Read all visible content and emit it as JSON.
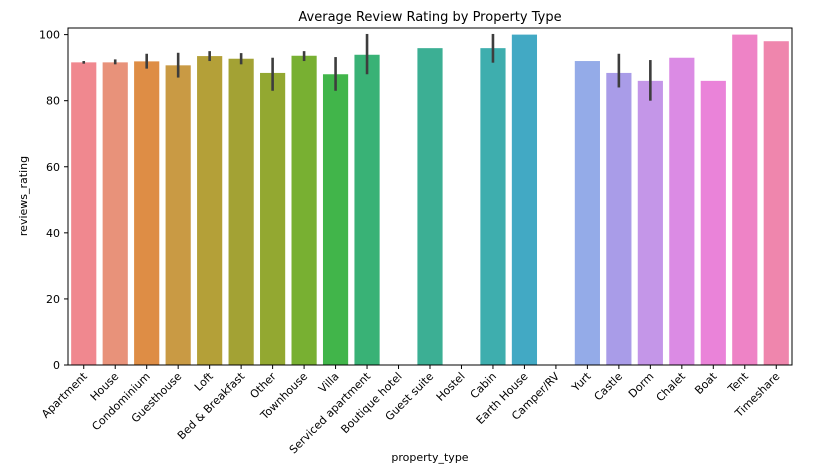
{
  "chart_data": {
    "type": "bar",
    "title": "Average Review Rating by Property Type",
    "xlabel": "property_type",
    "ylabel": "reviews_rating",
    "ylim": [
      0,
      102
    ],
    "yticks": [
      0,
      20,
      40,
      60,
      80,
      100
    ],
    "grid": false,
    "legend": "none",
    "categories": [
      "Apartment",
      "House",
      "Condominium",
      "Guesthouse",
      "Loft",
      "Bed & Breakfast",
      "Other",
      "Townhouse",
      "Villa",
      "Serviced apartment",
      "Boutique hotel",
      "Guest suite",
      "Hostel",
      "Cabin",
      "Earth House",
      "Camper/RV",
      "Yurt",
      "Castle",
      "Dorm",
      "Chalet",
      "Boat",
      "Tent",
      "Timeshare"
    ],
    "values": [
      91.6,
      91.6,
      91.9,
      90.7,
      93.5,
      92.7,
      88.4,
      93.6,
      88.0,
      93.9,
      null,
      95.9,
      null,
      95.9,
      100,
      null,
      92.0,
      88.4,
      86.0,
      93.0,
      86.0,
      100,
      98.0
    ],
    "error_low": [
      91.2,
      91.0,
      89.7,
      87.0,
      92.0,
      91.0,
      83.0,
      92.0,
      83.0,
      88.0,
      null,
      null,
      null,
      91.5,
      null,
      null,
      null,
      84.0,
      80.0,
      null,
      null,
      null,
      null
    ],
    "error_high": [
      92.0,
      92.5,
      94.2,
      94.5,
      95.0,
      94.4,
      93.0,
      95.0,
      93.2,
      100.2,
      null,
      null,
      null,
      100.2,
      null,
      null,
      null,
      94.2,
      92.3,
      null,
      null,
      null,
      null
    ],
    "colors": [
      "#f0888f",
      "#e8927a",
      "#de8d45",
      "#c99a44",
      "#b4a038",
      "#a3a234",
      "#93a831",
      "#78b032",
      "#41b54a",
      "#39b276",
      null,
      "#3caf94",
      null,
      "#3eaeae",
      "#42a9c4",
      null,
      "#94abe8",
      "#a99ce8",
      "#c496e8",
      "#db8be4",
      "#ea83d9",
      "#ee83c6",
      "#ef86ad"
    ]
  }
}
